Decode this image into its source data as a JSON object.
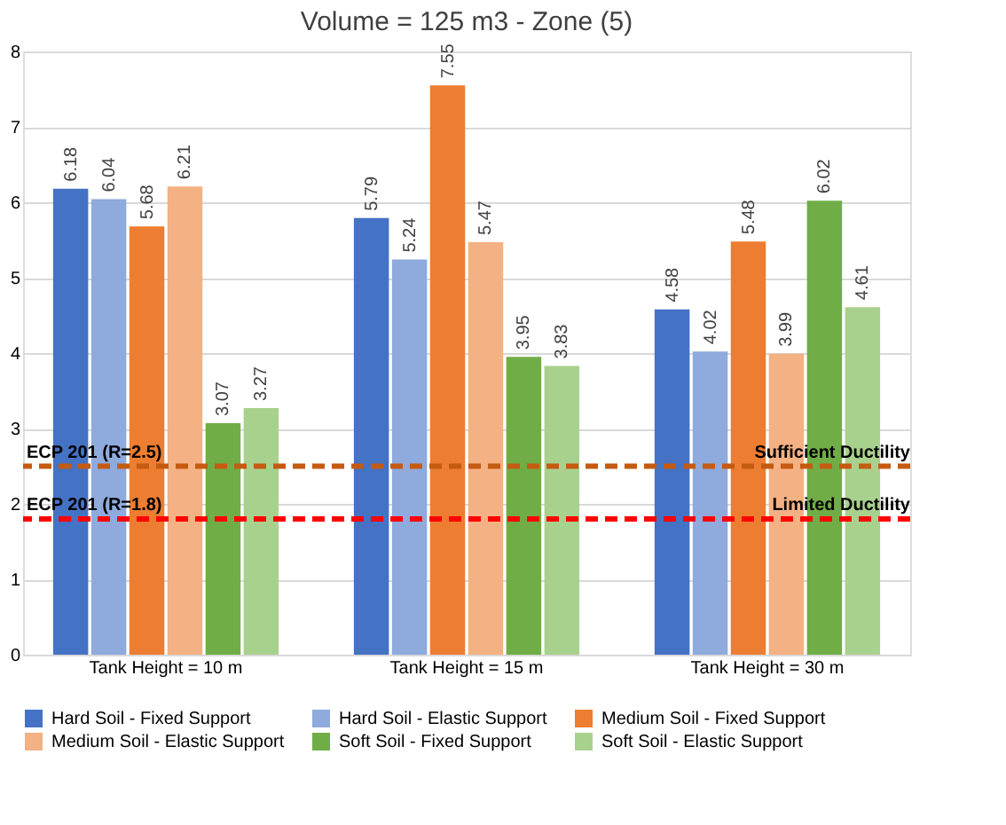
{
  "chart_data": {
    "type": "bar",
    "title": "Volume = 125 m3 - Zone (5)",
    "categories": [
      "Tank Height = 10 m",
      "Tank Height = 15 m",
      "Tank Height = 30 m"
    ],
    "series": [
      {
        "name": "Hard Soil - Fixed Support",
        "color": "#4472c4",
        "values": [
          6.18,
          5.79,
          4.58
        ]
      },
      {
        "name": "Hard Soil - Elastic Support",
        "color": "#8faadc",
        "values": [
          6.04,
          5.24,
          4.02
        ]
      },
      {
        "name": "Medium Soil - Fixed Support",
        "color": "#ed7d31",
        "values": [
          5.68,
          7.55,
          5.48
        ]
      },
      {
        "name": "Medium Soil - Elastic Support",
        "color": "#f4b183",
        "values": [
          6.21,
          5.47,
          3.99
        ]
      },
      {
        "name": "Soft Soil - Fixed Support",
        "color": "#70ad47",
        "values": [
          3.07,
          3.95,
          6.02
        ]
      },
      {
        "name": "Soft Soil - Elastic Support",
        "color": "#a9d18e",
        "values": [
          3.27,
          3.83,
          4.61
        ]
      }
    ],
    "ylim": [
      0,
      8
    ],
    "yticks": [
      0,
      1,
      2,
      3,
      4,
      5,
      6,
      7,
      8
    ],
    "grid": "y",
    "legend": "bottom",
    "data_labels": true,
    "ref_lines": [
      {
        "axis": "y",
        "value": 2.5,
        "label": "ECP 201 (R=2.5)",
        "color": "#c55a11",
        "line_style": "dashed"
      },
      {
        "axis": "y",
        "value": 1.8,
        "label": "ECP 201 (R=1.8)",
        "color": "#ff0000",
        "line_style": "dashed"
      }
    ],
    "annotations": [
      {
        "text": "Sufficient Ductility",
        "y": 2.5
      },
      {
        "text": "Limited Ductility",
        "y": 1.8
      }
    ]
  }
}
